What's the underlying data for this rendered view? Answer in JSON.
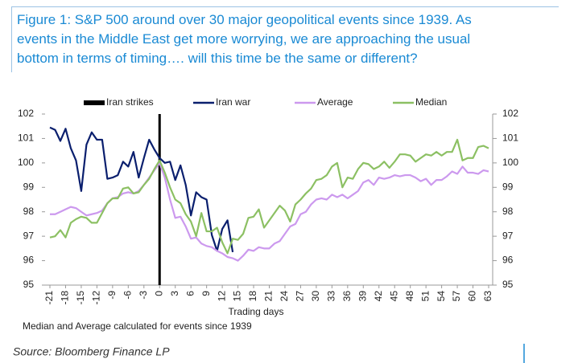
{
  "chart_data": {
    "type": "line",
    "title": [
      "Figure 1: S&P 500 around over 30 major geopolitical events since 1939. As",
      "events in the Middle East get more worrying, we are approaching the usual",
      "bottom in terms of timing…. will this time be the same or different?"
    ],
    "x_label": "Trading days",
    "note": "Median and Average calculated for events since 1939",
    "source": "Source: Bloomberg Finance LP",
    "x": [
      -21,
      -20,
      -19,
      -18,
      -17,
      -16,
      -15,
      -14,
      -13,
      -12,
      -11,
      -10,
      -9,
      -8,
      -7,
      -6,
      -5,
      -4,
      -3,
      -2,
      -1,
      0,
      1,
      2,
      3,
      4,
      5,
      6,
      7,
      8,
      9,
      10,
      11,
      12,
      13,
      14,
      15,
      16,
      17,
      18,
      19,
      20,
      21,
      22,
      23,
      24,
      25,
      26,
      27,
      28,
      29,
      30,
      31,
      32,
      33,
      34,
      35,
      36,
      37,
      38,
      39,
      40,
      41,
      42,
      43,
      44,
      45,
      46,
      47,
      48,
      49,
      50,
      51,
      52,
      53,
      54,
      55,
      56,
      57,
      58,
      59,
      60,
      61,
      62,
      63
    ],
    "series": [
      {
        "name": "Iran strikes",
        "color": "#000000",
        "type": "vline",
        "x": 0
      },
      {
        "name": "Iran war",
        "color": "#0a1f6e",
        "values": [
          101.45,
          101.35,
          100.9,
          101.4,
          100.6,
          100.1,
          98.85,
          100.75,
          101.25,
          100.95,
          100.95,
          99.35,
          99.4,
          99.5,
          100.05,
          99.85,
          100.45,
          99.4,
          100.2,
          100.95,
          100.55,
          100.2,
          100.0,
          100.05,
          99.3,
          99.9,
          99.1,
          97.85,
          98.8,
          98.6,
          98.5,
          97.05,
          96.4,
          97.3,
          97.65,
          96.35,
          null,
          null,
          null,
          null,
          null,
          null,
          null,
          null,
          null,
          null,
          null,
          null,
          null,
          null,
          null,
          null,
          null,
          null,
          null,
          null,
          null,
          null,
          null,
          null,
          null,
          null,
          null,
          null,
          null,
          null,
          null,
          null,
          null,
          null,
          null,
          null,
          null,
          null,
          null,
          null,
          null,
          null,
          null,
          null,
          null,
          null,
          null,
          null,
          null
        ]
      },
      {
        "name": "Average",
        "color": "#cc99ee",
        "values": [
          97.9,
          97.9,
          98.0,
          98.1,
          98.2,
          98.15,
          98.0,
          97.85,
          97.9,
          97.95,
          98.05,
          98.35,
          98.55,
          98.6,
          98.75,
          98.8,
          98.75,
          98.85,
          99.1,
          99.4,
          99.7,
          100.0,
          99.4,
          98.5,
          97.75,
          97.8,
          97.4,
          96.9,
          96.95,
          96.7,
          96.6,
          96.55,
          96.4,
          96.3,
          96.15,
          96.1,
          96.0,
          96.2,
          96.45,
          96.4,
          96.55,
          96.5,
          96.5,
          96.7,
          96.8,
          97.1,
          97.4,
          97.5,
          97.9,
          98.0,
          98.3,
          98.5,
          98.55,
          98.5,
          98.7,
          98.6,
          98.7,
          98.55,
          98.7,
          98.85,
          99.2,
          99.3,
          99.1,
          99.4,
          99.35,
          99.4,
          99.5,
          99.45,
          99.5,
          99.5,
          99.4,
          99.25,
          99.35,
          99.1,
          99.3,
          99.3,
          99.45,
          99.65,
          99.55,
          99.85,
          99.6,
          99.6,
          99.55,
          99.7,
          99.65
        ]
      },
      {
        "name": "Median",
        "color": "#8cc063",
        "values": [
          96.95,
          97.0,
          97.25,
          96.95,
          97.55,
          97.7,
          97.8,
          97.75,
          97.55,
          97.55,
          97.95,
          98.35,
          98.55,
          98.55,
          98.95,
          99.0,
          98.75,
          98.8,
          99.1,
          99.35,
          99.75,
          100.1,
          99.6,
          99.0,
          98.5,
          98.35,
          97.9,
          97.6,
          97.0,
          97.95,
          97.2,
          97.2,
          97.35,
          96.75,
          96.3,
          96.9,
          96.85,
          97.1,
          97.75,
          97.8,
          98.1,
          97.35,
          97.65,
          97.95,
          98.25,
          98.05,
          97.6,
          98.3,
          98.5,
          98.75,
          98.95,
          99.3,
          99.35,
          99.5,
          99.85,
          100.0,
          99.0,
          99.4,
          99.35,
          99.75,
          100.0,
          99.95,
          99.75,
          99.85,
          100.05,
          99.8,
          100.05,
          100.35,
          100.35,
          100.3,
          100.05,
          100.2,
          100.35,
          100.3,
          100.45,
          100.3,
          100.45,
          100.45,
          100.95,
          100.1,
          100.2,
          100.2,
          100.65,
          100.7,
          100.6
        ]
      }
    ],
    "xlim": [
      -21,
      63
    ],
    "xticks": [
      -21,
      -18,
      -15,
      -12,
      -9,
      -6,
      -3,
      0,
      3,
      6,
      9,
      12,
      15,
      18,
      21,
      24,
      27,
      30,
      33,
      36,
      39,
      42,
      45,
      48,
      51,
      54,
      57,
      60,
      63
    ],
    "ylim": [
      95,
      102
    ],
    "yticks": [
      95,
      96,
      97,
      98,
      99,
      100,
      101,
      102
    ],
    "y2lim": [
      95,
      102
    ],
    "y2ticks": [
      95,
      96,
      97,
      98,
      99,
      100,
      101,
      102
    ],
    "grid": false
  }
}
